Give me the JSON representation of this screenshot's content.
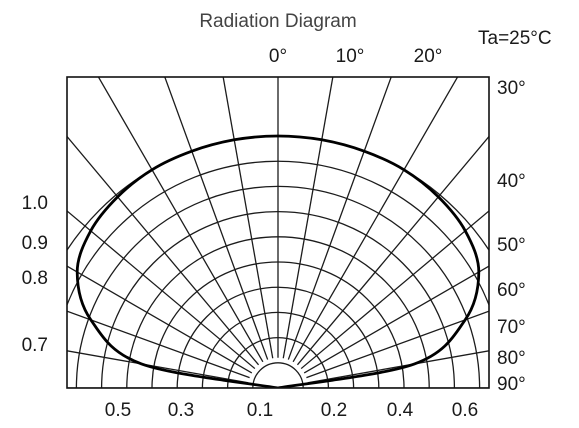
{
  "chart_data": {
    "type": "polar",
    "title": "Radiation Diagram",
    "condition": "Ta=25°C",
    "angle_labels": [
      "0°",
      "10°",
      "20°",
      "30°",
      "40°",
      "50°",
      "60°",
      "70°",
      "80°",
      "90°"
    ],
    "radial_labels_left": [
      "1.0",
      "0.9",
      "0.8",
      "0.7"
    ],
    "bottom_labels": [
      "0.5",
      "0.3",
      "0.1",
      "0.2",
      "0.4",
      "0.6"
    ],
    "series": [
      {
        "angle_deg": [
          -90,
          -80,
          -70,
          -60,
          -50,
          -40,
          -30,
          -20,
          -10,
          0,
          10,
          20,
          30,
          40,
          50,
          60,
          70,
          80,
          90
        ],
        "relative_intensity": [
          0.0,
          0.55,
          0.79,
          0.92,
          0.97,
          0.99,
          1.0,
          1.0,
          1.0,
          1.0,
          1.0,
          1.0,
          1.0,
          0.99,
          0.97,
          0.92,
          0.79,
          0.55,
          0.0
        ]
      }
    ]
  }
}
